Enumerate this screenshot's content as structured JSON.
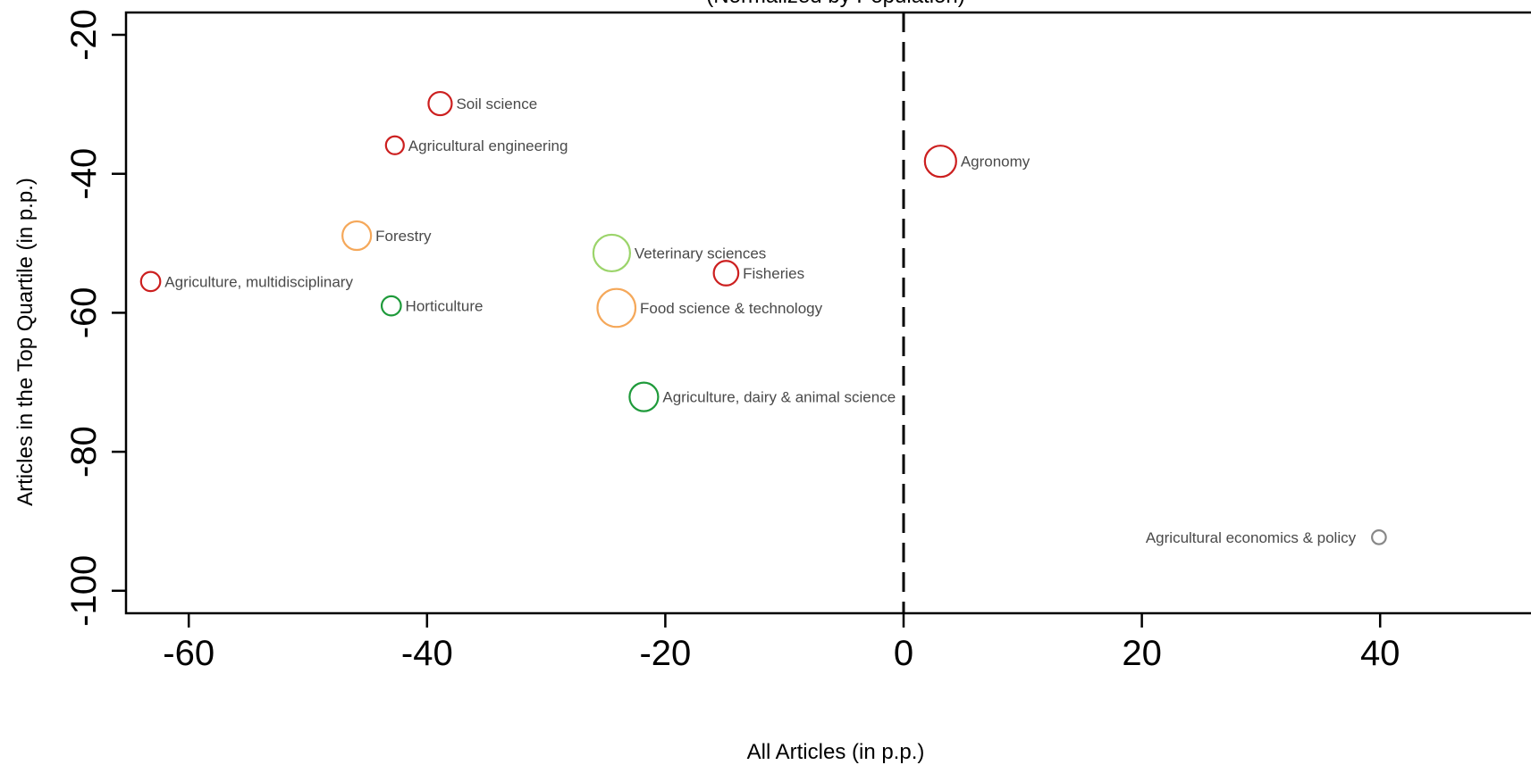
{
  "chart_data": {
    "type": "scatter",
    "title": "(Normalized by Population)",
    "xlabel": "All Articles (in p.p.)",
    "ylabel": "Articles in the Top Quartile (in p.p.)",
    "xlim": [
      -65,
      40
    ],
    "ylim": [
      -103,
      -17
    ],
    "x_ticks": [
      -60,
      -40,
      -20,
      0,
      20,
      40
    ],
    "y_ticks": [
      -20,
      -40,
      -60,
      -80,
      -100
    ],
    "reference_line": {
      "x": 0,
      "style": "dashed"
    },
    "grid": false,
    "points": [
      {
        "label": "Soil science",
        "x": -38.9,
        "y": -29.9,
        "size": 1.2,
        "color": "#cc1f1f"
      },
      {
        "label": "Agricultural engineering",
        "x": -42.7,
        "y": -35.9,
        "size": 0.8,
        "color": "#cc1f1f"
      },
      {
        "label": "Agronomy",
        "x": 3.1,
        "y": -38.2,
        "size": 1.8,
        "color": "#cc1f1f"
      },
      {
        "label": "Forestry",
        "x": -45.9,
        "y": -48.9,
        "size": 1.6,
        "color": "#f5a85a"
      },
      {
        "label": "Veterinary sciences",
        "x": -24.5,
        "y": -51.4,
        "size": 2.2,
        "color": "#9bd46a"
      },
      {
        "label": "Fisheries",
        "x": -14.9,
        "y": -54.3,
        "size": 1.3,
        "color": "#cc1f1f"
      },
      {
        "label": "Agriculture, multidisciplinary",
        "x": -63.2,
        "y": -55.5,
        "size": 0.9,
        "color": "#cc1f1f"
      },
      {
        "label": "Horticulture",
        "x": -43.0,
        "y": -59.0,
        "size": 0.9,
        "color": "#1e9a3a"
      },
      {
        "label": "Food science & technology",
        "x": -24.1,
        "y": -59.3,
        "size": 2.3,
        "color": "#f5a85a"
      },
      {
        "label": "Agriculture, dairy & animal science",
        "x": -21.8,
        "y": -72.1,
        "size": 1.6,
        "color": "#1e9a3a"
      },
      {
        "label": "Agricultural economics & policy",
        "x": 39.9,
        "y": -92.3,
        "size": 0.5,
        "color": "#888888",
        "label_side": "left"
      }
    ]
  }
}
